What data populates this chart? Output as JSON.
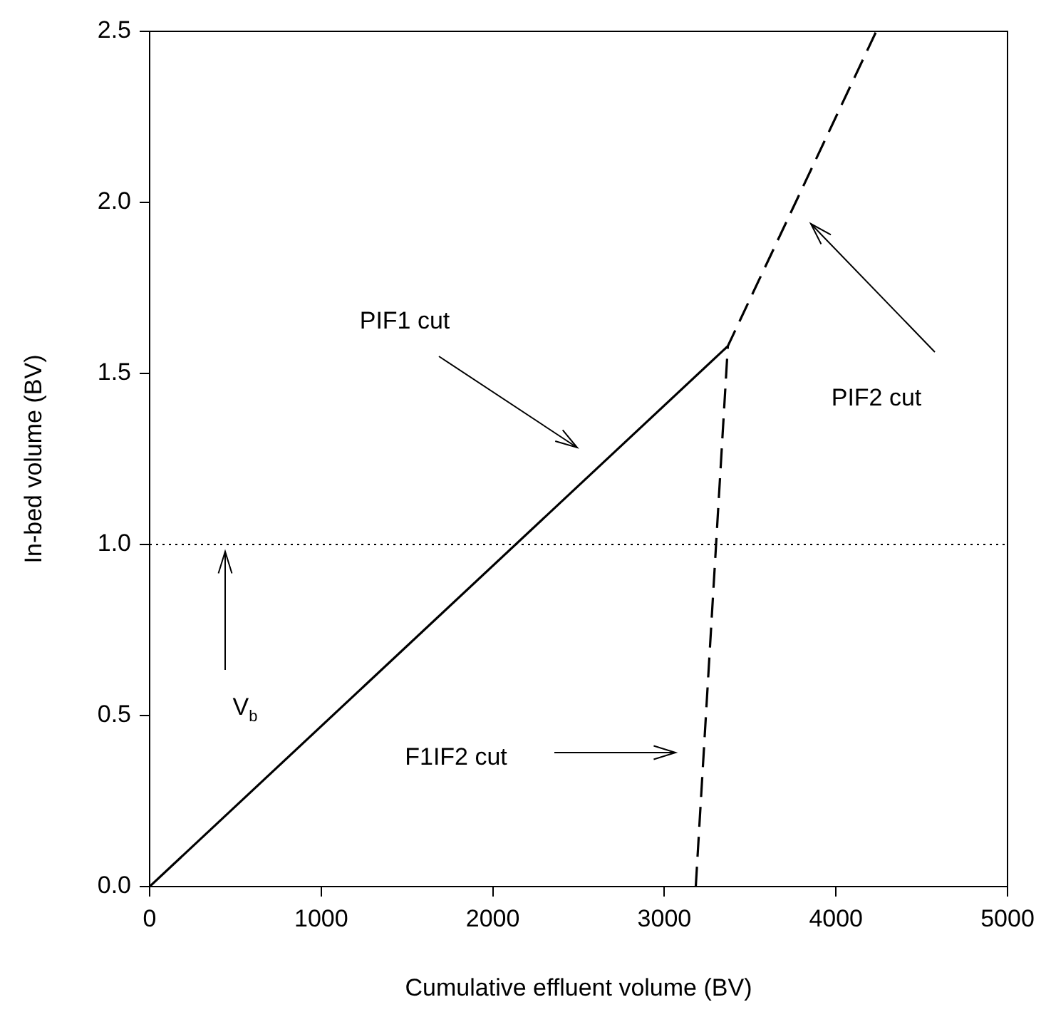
{
  "chart_data": {
    "type": "line",
    "xlabel": "Cumulative effluent volume (BV)",
    "ylabel": "In-bed volume (BV)",
    "series": [
      {
        "values": [
          0,
          1.58
        ],
        "x": [
          0,
          3370
        ],
        "color": "#000000",
        "line_style": "solid"
      },
      {
        "values": [
          0,
          1.58,
          2.5
        ],
        "x": [
          3183,
          3370,
          4235
        ],
        "color": "#000000",
        "line_style": "dashed"
      }
    ],
    "xlim": [
      0,
      5000
    ],
    "xticks": [
      0,
      1000,
      2000,
      3000,
      4000,
      5000
    ],
    "ylim": [
      0,
      2.5
    ],
    "yticks": [
      {
        "value": 0,
        "label": "0.0"
      },
      {
        "value": 0.5,
        "label": "0.5"
      },
      {
        "value": 1,
        "label": "1.0"
      },
      {
        "value": 1.5,
        "label": "1.5"
      },
      {
        "value": 2,
        "label": "2.0"
      },
      {
        "value": 2.5,
        "label": "2.5"
      }
    ],
    "ref_lines": [
      {
        "axis": "y",
        "value": 1,
        "color": "#000000",
        "line_style": "dotted"
      }
    ],
    "annotations": [
      "PIF1 cut",
      "PIF2 cut",
      "F1IF2 cut",
      "V$_{b}$"
    ],
    "grid": false,
    "legend": false,
    "marker": "none"
  }
}
